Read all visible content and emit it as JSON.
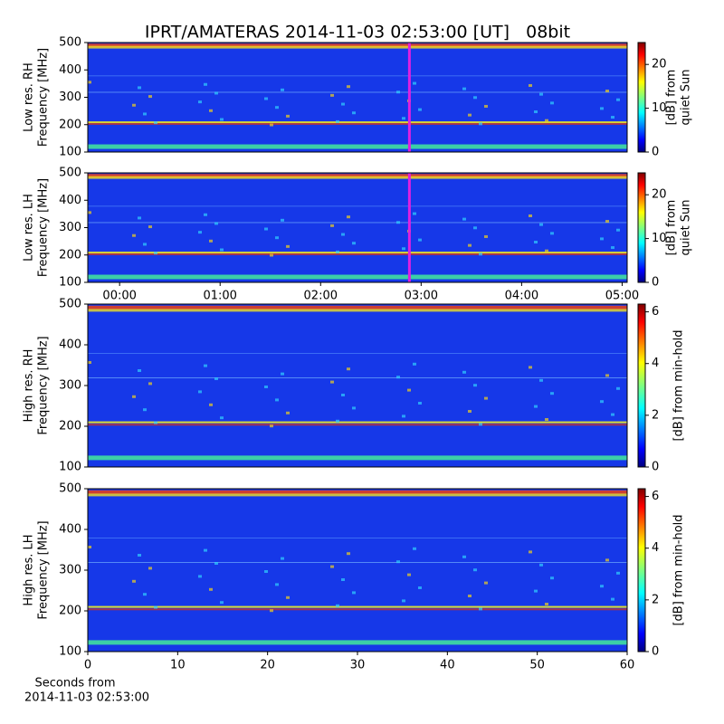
{
  "chart_data": [
    {
      "type": "heatmap",
      "title": "IPRT/AMATERAS 2014-11-03 02:53:00 [UT]   08bit",
      "ylabel": [
        "Low res. RH",
        "Frequency [MHz]"
      ],
      "ylim": [
        100,
        500
      ],
      "yticks": [
        100,
        200,
        300,
        400,
        500
      ],
      "xlim": [
        -19,
        303
      ],
      "cursor": 173,
      "cursor_color": "#e020e0",
      "colorbar": {
        "label": [
          "[dB] from",
          "quiet Sun"
        ],
        "lim": [
          0,
          25
        ],
        "ticks": [
          0,
          10,
          20
        ]
      }
    },
    {
      "type": "heatmap",
      "ylabel": [
        "Low res. LH",
        "Frequency [MHz]"
      ],
      "ylim": [
        100,
        500
      ],
      "yticks": [
        100,
        200,
        300,
        400,
        500
      ],
      "xlim": [
        -19,
        303
      ],
      "cursor": 173,
      "cursor_color": "#e020e0",
      "xticks": [
        {
          "value": 0,
          "label": "00:00"
        },
        {
          "value": 60,
          "label": "01:00"
        },
        {
          "value": 120,
          "label": "02:00"
        },
        {
          "value": 180,
          "label": "03:00"
        },
        {
          "value": 240,
          "label": "04:00"
        },
        {
          "value": 300,
          "label": "05:00"
        }
      ],
      "colorbar": {
        "label": [
          "[dB] from",
          "quiet Sun"
        ],
        "lim": [
          0,
          25
        ],
        "ticks": [
          0,
          10,
          20
        ]
      }
    },
    {
      "type": "heatmap",
      "ylabel": [
        "High res. RH",
        "Frequency [MHz]"
      ],
      "ylim": [
        100,
        500
      ],
      "yticks": [
        100,
        200,
        300,
        400,
        500
      ],
      "xlim": [
        0,
        60
      ],
      "colorbar": {
        "label": [
          "[dB] from min-hold"
        ],
        "lim": [
          0,
          6.3
        ],
        "ticks": [
          0,
          2,
          4,
          6
        ]
      }
    },
    {
      "type": "heatmap",
      "ylabel": [
        "High res. LH",
        "Frequency [MHz]"
      ],
      "ylim": [
        100,
        500
      ],
      "yticks": [
        100,
        200,
        300,
        400,
        500
      ],
      "xlim": [
        0,
        60
      ],
      "xticks": [
        0,
        10,
        20,
        30,
        40,
        50,
        60
      ],
      "xlabel": [
        "Seconds from",
        "2014-11-03 02:53:00"
      ],
      "colorbar": {
        "label": [
          "[dB] from min-hold"
        ],
        "lim": [
          0,
          6.3
        ],
        "ticks": [
          0,
          2,
          4,
          6
        ]
      }
    }
  ]
}
